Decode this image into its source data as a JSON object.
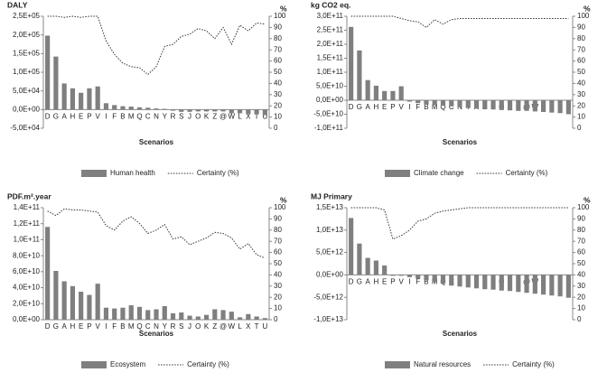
{
  "chart_data": [
    {
      "type": "bar",
      "title": "DALY",
      "y2_label": "%",
      "x_label": "Scenarios",
      "categories": [
        "D",
        "G",
        "A",
        "H",
        "E",
        "P",
        "V",
        "I",
        "F",
        "B",
        "M",
        "Q",
        "C",
        "N",
        "Y",
        "R",
        "S",
        "J",
        "O",
        "K",
        "Z",
        "@",
        "W",
        "L",
        "X",
        "T",
        "U"
      ],
      "series": [
        {
          "name": "Human health",
          "type": "bar",
          "color": "#7f7f7f",
          "values": [
            198000,
            142000,
            70000,
            57000,
            45000,
            57000,
            62000,
            17000,
            12000,
            9000,
            8000,
            6000,
            5000,
            3000,
            2000,
            -3000,
            -6000,
            -6000,
            -5000,
            -5000,
            -5000,
            -5000,
            -10000,
            -10000,
            -12000,
            -13000,
            -15000
          ]
        },
        {
          "name": "Certainty (%)",
          "type": "line",
          "axis": "y2",
          "color": "#333333",
          "values": [
            100,
            100,
            99,
            100,
            99,
            100,
            100,
            78,
            66,
            58,
            55,
            54,
            48,
            55,
            73,
            75,
            82,
            84,
            89,
            87,
            80,
            90,
            75,
            92,
            87,
            94,
            93
          ]
        }
      ],
      "ylim": [
        -50000,
        250000
      ],
      "yticks": [
        {
          "value": -50000,
          "label": "-5,0E+04"
        },
        {
          "value": 0,
          "label": "0,0E+00"
        },
        {
          "value": 50000,
          "label": "5,0E+04"
        },
        {
          "value": 100000,
          "label": "1,0E+05"
        },
        {
          "value": 150000,
          "label": "1,5E+05"
        },
        {
          "value": 200000,
          "label": "2,0E+05"
        },
        {
          "value": 250000,
          "label": "2,5E+05"
        }
      ],
      "y2lim": [
        0,
        100
      ],
      "y2ticks": [
        0,
        10,
        20,
        30,
        40,
        50,
        60,
        70,
        80,
        90,
        100
      ]
    },
    {
      "type": "bar",
      "title": "kg CO2 eq.",
      "y2_label": "%",
      "x_label": "Scenarios",
      "categories": [
        "D",
        "G",
        "A",
        "H",
        "E",
        "P",
        "V",
        "I",
        "F",
        "B",
        "M",
        "Q",
        "C",
        "N",
        "Y",
        "R",
        "S",
        "J",
        "O",
        "K",
        "Z",
        "@",
        "W",
        "L",
        "X",
        "T",
        "U"
      ],
      "series": [
        {
          "name": "Climate change",
          "type": "bar",
          "color": "#7f7f7f",
          "values": [
            262000000000.0,
            178000000000.0,
            72000000000.0,
            52000000000.0,
            33000000000.0,
            33000000000.0,
            50000000000.0,
            -5000000000.0,
            -10000000000.0,
            -15000000000.0,
            -18000000000.0,
            -20000000000.0,
            -22000000000.0,
            -25000000000.0,
            -28000000000.0,
            -30000000000.0,
            -32000000000.0,
            -33000000000.0,
            -35000000000.0,
            -36000000000.0,
            -38000000000.0,
            -38000000000.0,
            -40000000000.0,
            -42000000000.0,
            -44000000000.0,
            -46000000000.0,
            -50000000000.0
          ]
        },
        {
          "name": "Certainty (%)",
          "type": "line",
          "axis": "y2",
          "color": "#333333",
          "values": [
            100,
            100,
            100,
            100,
            100,
            100,
            98,
            96,
            95,
            90,
            97,
            93,
            97,
            98,
            98,
            98,
            98,
            98,
            98,
            98,
            98,
            98,
            98,
            98,
            98,
            98,
            98
          ]
        }
      ],
      "ylim": [
        -100000000000.0,
        300000000000.0
      ],
      "yticks": [
        {
          "value": -100000000000.0,
          "label": "-1,0E+11"
        },
        {
          "value": -50000000000.0,
          "label": "-5,0E+10"
        },
        {
          "value": 0,
          "label": "0,0E+00"
        },
        {
          "value": 50000000000.0,
          "label": "5,0E+10"
        },
        {
          "value": 100000000000.0,
          "label": "1,0E+11"
        },
        {
          "value": 150000000000.0,
          "label": "1,5E+11"
        },
        {
          "value": 200000000000.0,
          "label": "2,0E+11"
        },
        {
          "value": 250000000000.0,
          "label": "2,5E+11"
        },
        {
          "value": 300000000000.0,
          "label": "3,0E+11"
        }
      ],
      "y2lim": [
        0,
        100
      ],
      "y2ticks": [
        0,
        10,
        20,
        30,
        40,
        50,
        60,
        70,
        80,
        90,
        100
      ]
    },
    {
      "type": "bar",
      "title": "PDF.m².year",
      "y2_label": "%",
      "x_label": "Scenarios",
      "categories": [
        "D",
        "G",
        "A",
        "H",
        "E",
        "P",
        "V",
        "I",
        "F",
        "B",
        "M",
        "Q",
        "C",
        "N",
        "Y",
        "R",
        "S",
        "J",
        "O",
        "K",
        "Z",
        "@",
        "W",
        "L",
        "X",
        "T",
        "U"
      ],
      "series": [
        {
          "name": "Ecosystem",
          "type": "bar",
          "color": "#7f7f7f",
          "values": [
            116000000000.0,
            61000000000.0,
            48000000000.0,
            42000000000.0,
            35000000000.0,
            31000000000.0,
            45000000000.0,
            15000000000.0,
            14000000000.0,
            15000000000.0,
            18000000000.0,
            16000000000.0,
            12000000000.0,
            13000000000.0,
            17000000000.0,
            8000000000.0,
            9000000000.0,
            5000000000.0,
            4000000000.0,
            6000000000.0,
            13000000000.0,
            12000000000.0,
            10000000000.0,
            3000000000.0,
            7000000000.0,
            4000000000.0,
            2000000000.0
          ]
        },
        {
          "name": "Certainty (%)",
          "type": "line",
          "axis": "y2",
          "color": "#333333",
          "values": [
            97,
            93,
            99,
            98,
            98,
            97,
            96,
            84,
            80,
            88,
            92,
            86,
            77,
            80,
            85,
            72,
            74,
            67,
            70,
            73,
            78,
            77,
            73,
            63,
            68,
            58,
            55
          ]
        }
      ],
      "ylim": [
        0,
        140000000000.0
      ],
      "yticks": [
        {
          "value": 0,
          "label": "0,0E+00"
        },
        {
          "value": 20000000000.0,
          "label": "2,0E+10"
        },
        {
          "value": 40000000000.0,
          "label": "4,0E+10"
        },
        {
          "value": 60000000000.0,
          "label": "6,0E+10"
        },
        {
          "value": 80000000000.0,
          "label": "8,0E+10"
        },
        {
          "value": 100000000000.0,
          "label": "1,0E+11"
        },
        {
          "value": 120000000000.0,
          "label": "1,2E+11"
        },
        {
          "value": 140000000000.0,
          "label": "1,4E+11"
        }
      ],
      "y2lim": [
        0,
        100
      ],
      "y2ticks": [
        0,
        10,
        20,
        30,
        40,
        50,
        60,
        70,
        80,
        90,
        100
      ]
    },
    {
      "type": "bar",
      "title": "MJ Primary",
      "y2_label": "%",
      "x_label": "Scenarios",
      "categories": [
        "D",
        "G",
        "A",
        "H",
        "E",
        "P",
        "V",
        "I",
        "F",
        "B",
        "M",
        "Q",
        "C",
        "N",
        "Y",
        "R",
        "S",
        "J",
        "O",
        "K",
        "Z",
        "@",
        "W",
        "L",
        "X",
        "T",
        "U"
      ],
      "series": [
        {
          "name": "Natural resources",
          "type": "bar",
          "color": "#7f7f7f",
          "values": [
            12700000000000.0,
            7000000000000.0,
            3800000000000.0,
            3200000000000.0,
            2100000000000.0,
            -200000000000.0,
            -200000000000.0,
            -500000000000.0,
            -800000000000.0,
            -1200000000000.0,
            -1600000000000.0,
            -2000000000000.0,
            -2400000000000.0,
            -2600000000000.0,
            -2800000000000.0,
            -3000000000000.0,
            -3200000000000.0,
            -3300000000000.0,
            -3500000000000.0,
            -3600000000000.0,
            -3800000000000.0,
            -4000000000000.0,
            -4200000000000.0,
            -4400000000000.0,
            -4600000000000.0,
            -4800000000000.0,
            -5100000000000.0
          ]
        },
        {
          "name": "Certainty (%)",
          "type": "line",
          "axis": "y2",
          "color": "#333333",
          "values": [
            100,
            100,
            100,
            100,
            98,
            72,
            75,
            80,
            88,
            90,
            95,
            97,
            98,
            99,
            100,
            100,
            100,
            100,
            100,
            100,
            100,
            100,
            100,
            100,
            100,
            100,
            100
          ]
        }
      ],
      "ylim": [
        -10000000000000.0,
        15000000000000.0
      ],
      "yticks": [
        {
          "value": -10000000000000.0,
          "label": "-1,0E+13"
        },
        {
          "value": -5000000000000.0,
          "label": "-5,0E+12"
        },
        {
          "value": 0,
          "label": "0,0E+00"
        },
        {
          "value": 5000000000000.0,
          "label": "5,0E+12"
        },
        {
          "value": 10000000000000.0,
          "label": "1,0E+13"
        },
        {
          "value": 15000000000000.0,
          "label": "1,5E+13"
        }
      ],
      "y2lim": [
        0,
        100
      ],
      "y2ticks": [
        0,
        10,
        20,
        30,
        40,
        50,
        60,
        70,
        80,
        90,
        100
      ]
    }
  ]
}
